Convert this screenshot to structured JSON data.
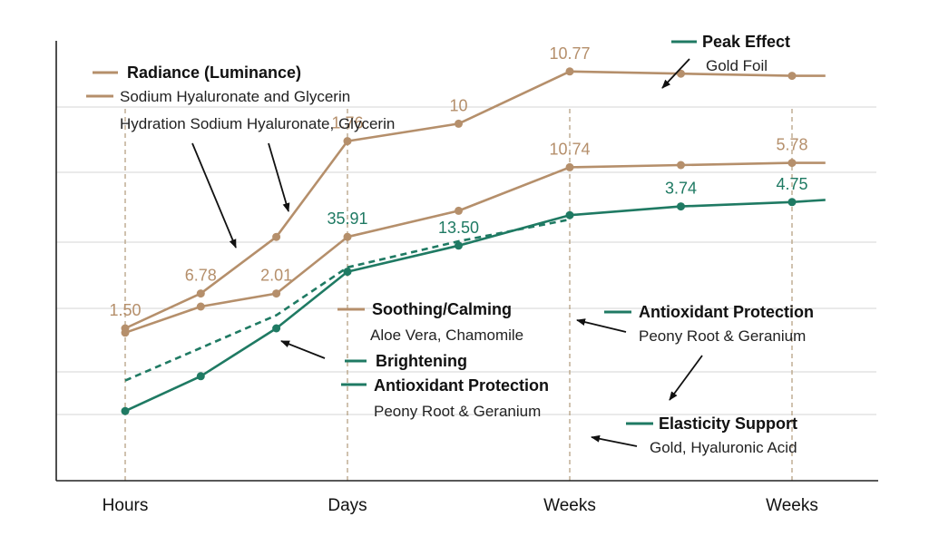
{
  "chart_data": {
    "type": "line",
    "categories": [
      "Hours",
      "Days",
      "Weeks",
      "Weeks"
    ],
    "grid": true,
    "colors": {
      "tan": "#b58f6b",
      "teal": "#1f7a63",
      "axis": "#222222",
      "grid": "#d4d4d4",
      "guide": "#b09a7a"
    },
    "series": [
      {
        "color": "#b58f6b",
        "style": "solid",
        "x": [
          0,
          0.34,
          0.68,
          1,
          1.5,
          2,
          2.5,
          3,
          3.15
        ],
        "y": [
          1.5,
          2.3,
          3.6,
          5.8,
          6.2,
          7.4,
          7.35,
          7.3,
          7.3
        ]
      },
      {
        "color": "#b58f6b",
        "style": "solid",
        "x": [
          0,
          0.34,
          0.68,
          1,
          1.5,
          2,
          2.5,
          3,
          3.15
        ],
        "y": [
          1.4,
          2.0,
          2.3,
          3.6,
          4.2,
          5.2,
          5.25,
          5.3,
          5.3
        ]
      },
      {
        "color": "#1f7a63",
        "style": "solid",
        "x": [
          0,
          0.34,
          0.68,
          1,
          1.5,
          2,
          2.5,
          3,
          3.15
        ],
        "y": [
          -0.4,
          0.4,
          1.5,
          2.8,
          3.4,
          4.1,
          4.3,
          4.4,
          4.45
        ]
      },
      {
        "color": "#1f7a63",
        "style": "dashed",
        "x": [
          0,
          0.68,
          1,
          1.5,
          2
        ],
        "y": [
          0.3,
          1.8,
          2.9,
          3.5,
          4.0
        ]
      }
    ],
    "data_labels": [
      {
        "text": "1.50",
        "x": 0,
        "y": 1.5,
        "color": "#b58f6b"
      },
      {
        "text": "6.78",
        "x": 0.34,
        "y": 2.3,
        "color": "#b58f6b"
      },
      {
        "text": "2.01",
        "x": 0.68,
        "y": 2.3,
        "color": "#b58f6b"
      },
      {
        "text": "1.76",
        "x": 1,
        "y": 5.8,
        "color": "#b58f6b"
      },
      {
        "text": "35.91",
        "x": 1,
        "y": 3.6,
        "color": "#1f7a63"
      },
      {
        "text": "10",
        "x": 1.5,
        "y": 6.2,
        "color": "#b58f6b"
      },
      {
        "text": "13.50",
        "x": 1.5,
        "y": 3.4,
        "color": "#1f7a63"
      },
      {
        "text": "10.77",
        "x": 2,
        "y": 7.4,
        "color": "#b58f6b"
      },
      {
        "text": "10.74",
        "x": 2,
        "y": 5.2,
        "color": "#b58f6b"
      },
      {
        "text": "3.74",
        "x": 2.5,
        "y": 4.3,
        "color": "#1f7a63"
      },
      {
        "text": "5.78",
        "x": 3,
        "y": 5.3,
        "color": "#b58f6b"
      },
      {
        "text": "4.75",
        "x": 3,
        "y": 4.4,
        "color": "#1f7a63"
      }
    ],
    "legend_entries": [
      {
        "title": "Radiance (Luminance)",
        "subtitle": "Sodium Hyaluronate and Glycerin",
        "extra": "Hydration Sodium Hyaluronate, Glycerin",
        "color": "#b58f6b"
      },
      {
        "title": "Peak Effect",
        "subtitle": "Gold Foil",
        "color": "#1f7a63"
      },
      {
        "title": "Soothing/Calming",
        "subtitle": "Aloe Vera, Chamomile",
        "color": "#b58f6b"
      },
      {
        "title": "Brightening",
        "subtitle": "",
        "color": "#1f7a63"
      },
      {
        "title": "Antioxidant Protection",
        "subtitle": "Peony Root & Geranium",
        "color": "#1f7a63"
      },
      {
        "title": "Antioxidant Protection",
        "subtitle": "Peony Root & Geranium",
        "color": "#1f7a63"
      },
      {
        "title": "Elasticity Support",
        "subtitle": "Gold, Hyaluronic Acid",
        "color": "#1f7a63"
      }
    ]
  }
}
